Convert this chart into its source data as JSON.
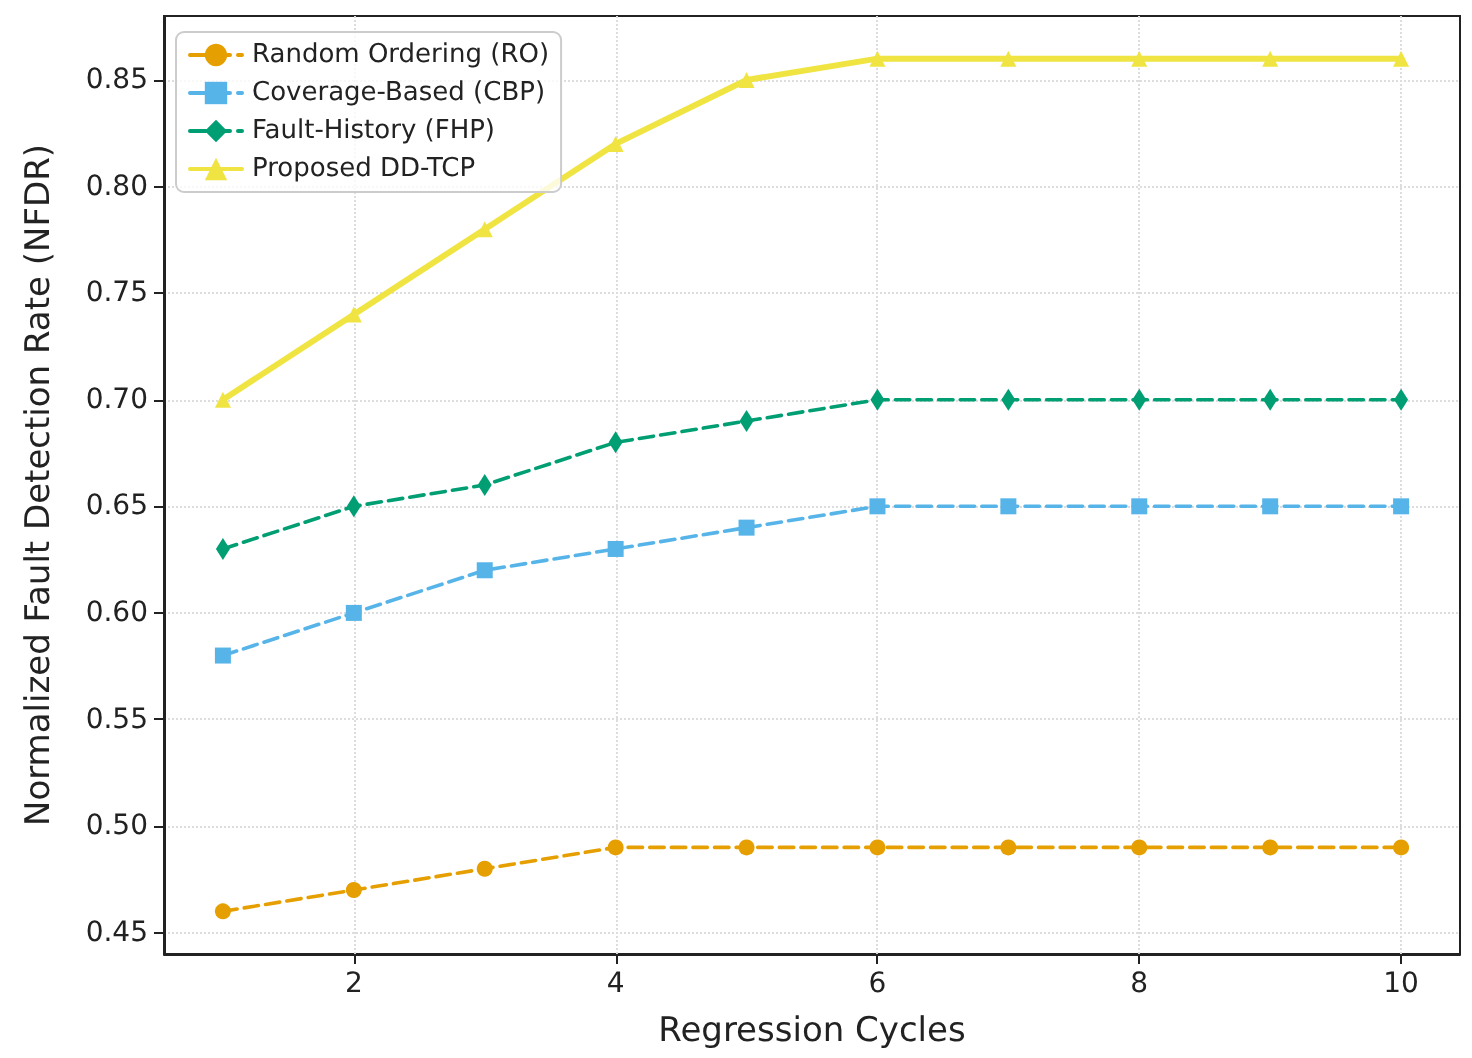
{
  "chart_data": {
    "type": "line",
    "xlabel": "Regression Cycles",
    "ylabel": "Normalized Fault Detection Rate (NFDR)",
    "x": [
      1,
      2,
      3,
      4,
      5,
      6,
      7,
      8,
      9,
      10
    ],
    "series": [
      {
        "name": "Random Ordering (RO)",
        "color": "#e69f00",
        "marker": "circle",
        "line_style": "dashed",
        "values": [
          0.46,
          0.47,
          0.48,
          0.49,
          0.49,
          0.49,
          0.49,
          0.49,
          0.49,
          0.49
        ]
      },
      {
        "name": "Coverage-Based (CBP)",
        "color": "#56b4e9",
        "marker": "square",
        "line_style": "dashed",
        "values": [
          0.58,
          0.6,
          0.62,
          0.63,
          0.64,
          0.65,
          0.65,
          0.65,
          0.65,
          0.65
        ]
      },
      {
        "name": "Fault-History (FHP)",
        "color": "#009e73",
        "marker": "diamond",
        "line_style": "dashed",
        "values": [
          0.63,
          0.65,
          0.66,
          0.68,
          0.69,
          0.7,
          0.7,
          0.7,
          0.7,
          0.7
        ]
      },
      {
        "name": "Proposed DD-TCP",
        "color": "#f0e442",
        "marker": "triangle",
        "line_style": "solid",
        "values": [
          0.7,
          0.74,
          0.78,
          0.82,
          0.85,
          0.86,
          0.86,
          0.86,
          0.86,
          0.86
        ]
      }
    ],
    "xlim": [
      0.55,
      10.45
    ],
    "xticks": [
      2,
      4,
      6,
      8,
      10
    ],
    "ylim": [
      0.44,
      0.88
    ],
    "yticks": [
      0.45,
      {
        "value": 0.5,
        "label": "0.50"
      },
      0.55,
      {
        "value": 0.6,
        "label": "0.60"
      },
      0.65,
      {
        "value": 0.7,
        "label": "0.70"
      },
      0.75,
      {
        "value": 0.8,
        "label": "0.80"
      },
      0.85
    ],
    "grid": true,
    "legend": "top left"
  }
}
